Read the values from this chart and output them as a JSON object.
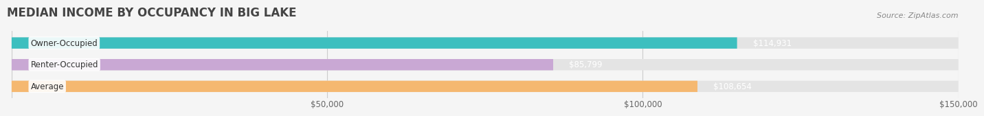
{
  "title": "MEDIAN INCOME BY OCCUPANCY IN BIG LAKE",
  "source": "Source: ZipAtlas.com",
  "categories": [
    "Owner-Occupied",
    "Renter-Occupied",
    "Average"
  ],
  "values": [
    114931,
    85799,
    108654
  ],
  "bar_colors": [
    "#3dbfbf",
    "#c9a8d4",
    "#f5b870"
  ],
  "bar_bg_color": "#e4e4e4",
  "value_labels": [
    "$114,931",
    "$85,799",
    "$108,654"
  ],
  "xlim": [
    0,
    150000
  ],
  "xticks": [
    0,
    50000,
    100000,
    150000
  ],
  "xtick_labels": [
    "",
    "$50,000",
    "$100,000",
    "$150,000"
  ],
  "background_color": "#f5f5f5",
  "title_fontsize": 12,
  "label_fontsize": 8.5,
  "tick_fontsize": 8.5,
  "source_fontsize": 8
}
